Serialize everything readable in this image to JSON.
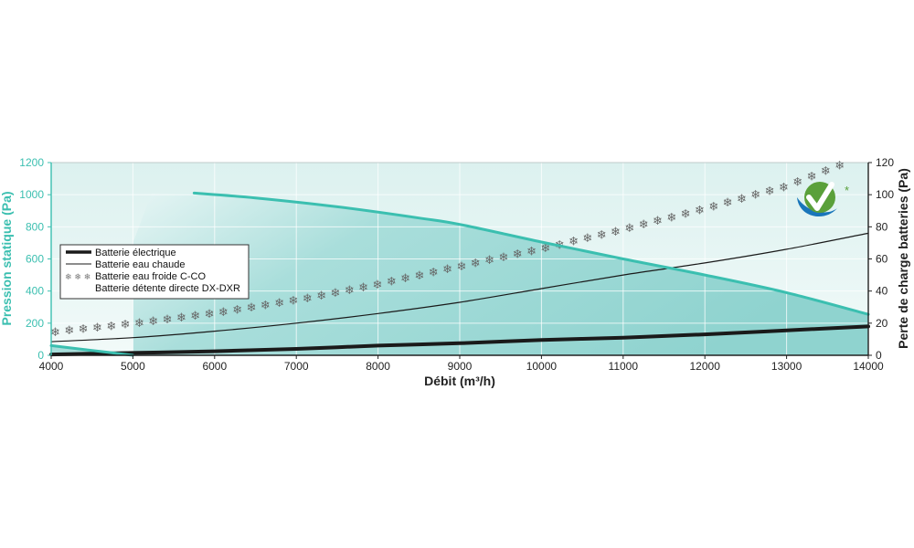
{
  "chart_data": {
    "type": "line",
    "xlabel": "Débit (m³/h)",
    "ylabel_left": "Pression statique (Pa)",
    "ylabel_right": "Perte de charge batteries (Pa)",
    "xlim": [
      4000,
      14000
    ],
    "ylim_left": [
      0,
      1200
    ],
    "ylim_right": [
      0,
      120
    ],
    "x_ticks": [
      "4000",
      "5000",
      "6000",
      "7000",
      "8000",
      "9000",
      "10000",
      "11000",
      "12000",
      "13000",
      "14000"
    ],
    "y_ticks_left": [
      "0",
      "200",
      "400",
      "600",
      "800",
      "1000",
      "1200"
    ],
    "y_ticks_right": [
      "0",
      "20",
      "40",
      "60",
      "80",
      "100",
      "120"
    ],
    "grid": true,
    "legend_position": "left",
    "pressure_curve": {
      "axis": "left",
      "color": "#3bbfb0",
      "x": [
        5750,
        6500,
        7500,
        8500,
        9000,
        10000,
        11000,
        12000,
        13000,
        14000
      ],
      "y": [
        1010,
        980,
        925,
        855,
        815,
        705,
        600,
        500,
        390,
        255
      ]
    },
    "pressure_curve_low": {
      "axis": "left",
      "color": "#3bbfb0",
      "x": [
        4000,
        4500,
        5000
      ],
      "y": [
        60,
        30,
        0
      ]
    },
    "series": [
      {
        "name": "Batterie électrique",
        "axis": "right",
        "style": "thick",
        "color": "#1a1a1a",
        "x": [
          4000,
          5000,
          6000,
          7000,
          8000,
          9000,
          10000,
          11000,
          12000,
          13000,
          14000
        ],
        "y": [
          0.5,
          1.5,
          2.5,
          4,
          6,
          7.5,
          9.5,
          11,
          13,
          15.5,
          18
        ]
      },
      {
        "name": "Batterie eau chaude",
        "axis": "right",
        "style": "thin",
        "color": "#1a1a1a",
        "x": [
          4000,
          5000,
          6000,
          7000,
          8000,
          9000,
          10000,
          11000,
          12000,
          13000,
          14000
        ],
        "y": [
          8.5,
          11,
          15,
          20,
          26,
          33,
          41.5,
          50,
          57.5,
          66,
          76
        ]
      },
      {
        "name": "Batterie eau froide C-CO",
        "name2": "Batterie détente directe DX-DXR",
        "axis": "right",
        "style": "snowflake",
        "color": "#666666",
        "x": [
          4000,
          5000,
          6000,
          7000,
          8000,
          9000,
          10000,
          11000,
          12000,
          13000,
          13650
        ],
        "y": [
          14,
          19.5,
          26,
          34,
          44,
          55,
          66,
          78,
          91,
          105,
          118
        ]
      }
    ],
    "logo_icon": "checkmark-leaf-icon",
    "logo_mark": "*",
    "colors": {
      "accent": "#3bbfb0",
      "fill": "#7ccfcb",
      "background": "#e9f6f5",
      "grid": "#ffffff",
      "logo_blue": "#1976ba",
      "logo_green": "#5aa03a"
    }
  }
}
